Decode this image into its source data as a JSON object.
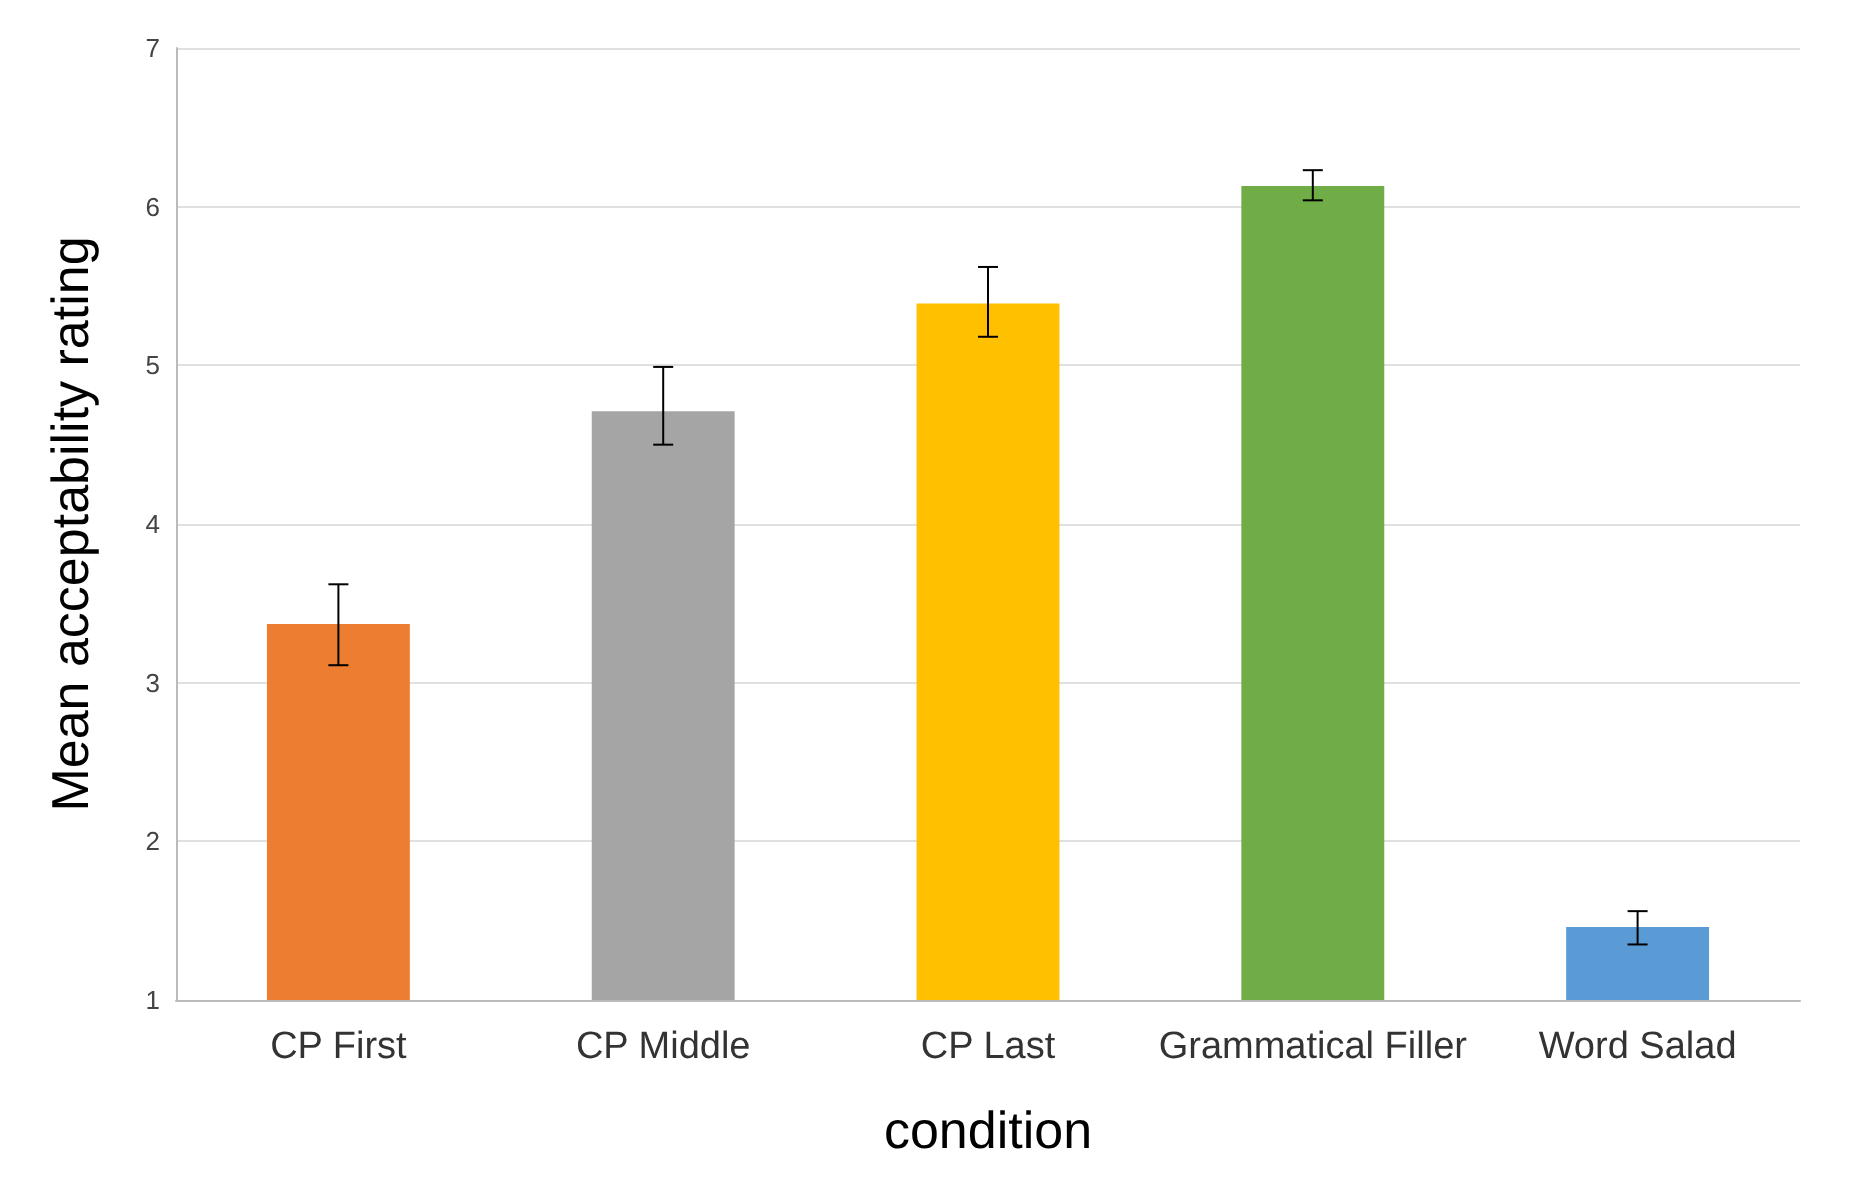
{
  "chart_data": {
    "type": "bar",
    "xlabel": "condition",
    "ylabel": "Mean acceptability rating",
    "categories": [
      "CP First",
      "CP Middle",
      "CP Last",
      "Grammatical Filler",
      "Word Salad"
    ],
    "values": [
      3.37,
      4.71,
      5.39,
      6.13,
      1.46
    ],
    "colors": [
      "#ed7d31",
      "#a5a5a5",
      "#ffc000",
      "#70ad47",
      "#5b9bd5"
    ],
    "errors": [
      [
        3.11,
        3.62
      ],
      [
        4.5,
        4.99
      ],
      [
        5.18,
        5.62
      ],
      [
        6.04,
        6.23
      ],
      [
        1.35,
        1.56
      ]
    ],
    "ylim": [
      1,
      7
    ],
    "yticks": [
      1,
      2,
      3,
      4,
      5,
      6,
      7
    ],
    "grid": "y"
  }
}
